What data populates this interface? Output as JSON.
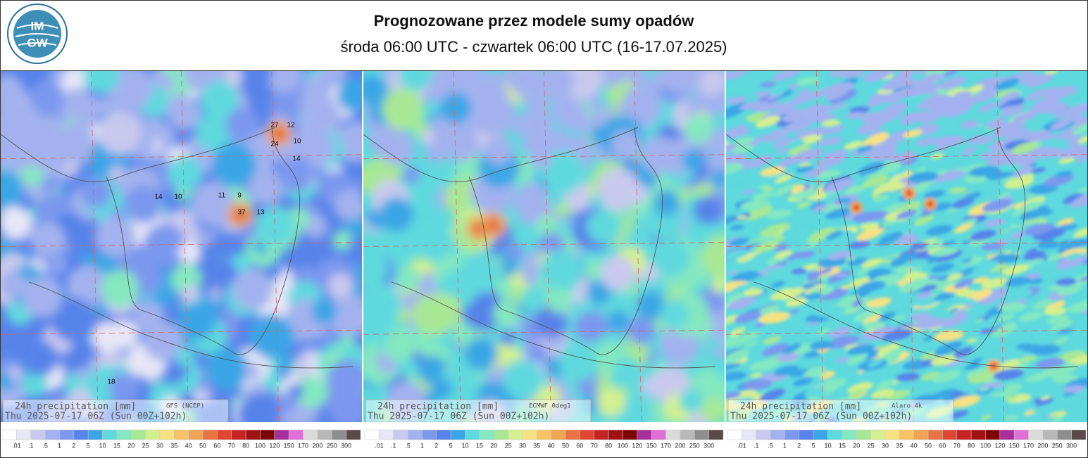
{
  "header": {
    "title": "Prognozowane przez modele sumy opadów",
    "subtitle": "środa 06:00 UTC - czwartek 06:00 UTC (16-17.07.2025)",
    "logo": [
      "IM",
      "GW"
    ]
  },
  "panels": [
    {
      "label": "24h precipitation  [mm]",
      "model": "GFS (NCEP)",
      "time": "Thu 2025-07-17 06Z (Sun 00Z+102h)",
      "map_labels": [
        "27",
        "12",
        "24",
        "10",
        "14",
        "37",
        "13",
        "11",
        "9",
        "14",
        "10",
        "18"
      ]
    },
    {
      "label": "24h precipitation  [mm]",
      "model": "ECMWF 0deg1",
      "time": "Thu 2025-07-17 06Z (Sun 00Z+102h)"
    },
    {
      "label": "24h precipitation  [mm]",
      "model": "Alaro 4k",
      "time": "Thu 2025-07-17 06Z (Sun 00Z+102h)"
    }
  ],
  "colorbar": {
    "labels": [
      ".01",
      ".1",
      ".5",
      "1",
      "2",
      "5",
      "10",
      "15",
      "20",
      "25",
      "30",
      "35",
      "40",
      "50",
      "60",
      "70",
      "80",
      "100",
      "120",
      "150",
      "170",
      "200",
      "250",
      "300"
    ],
    "colors": [
      "#ffffff",
      "#e6e6f6",
      "#c9c9ee",
      "#a3b2ee",
      "#7b98ee",
      "#5783ea",
      "#3aa6e6",
      "#5ed9de",
      "#84e8c0",
      "#a8e894",
      "#d4f08e",
      "#f6e282",
      "#f6c466",
      "#f0a456",
      "#e87444",
      "#de4632",
      "#c42424",
      "#a01212",
      "#7c0606",
      "#a8309c",
      "#e070d6",
      "#dadada",
      "#b8b8b8",
      "#8e8e8e",
      "#5a4a4a"
    ]
  }
}
